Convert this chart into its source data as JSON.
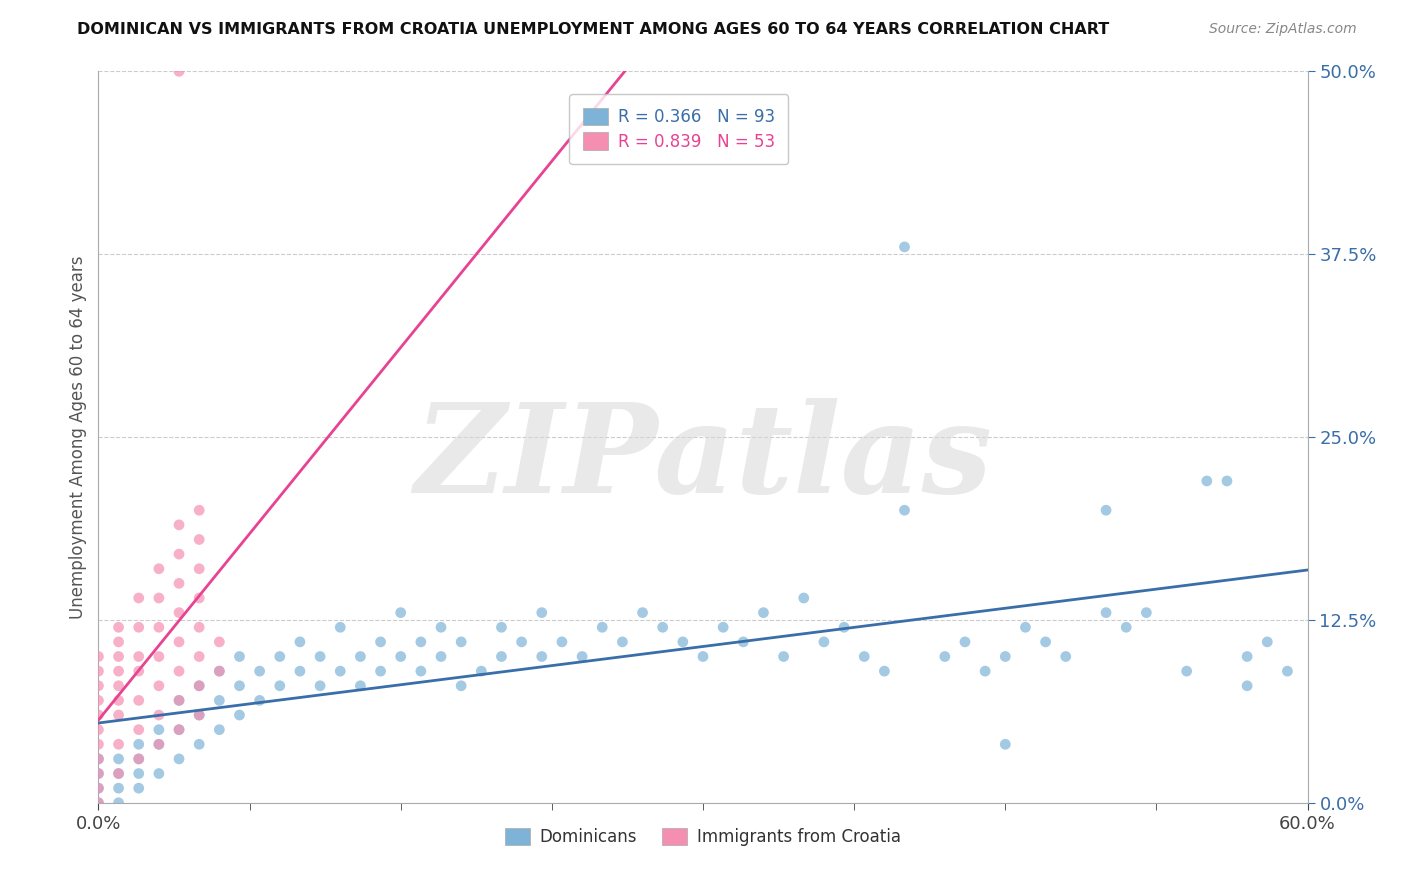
{
  "title": "DOMINICAN VS IMMIGRANTS FROM CROATIA UNEMPLOYMENT AMONG AGES 60 TO 64 YEARS CORRELATION CHART",
  "source": "Source: ZipAtlas.com",
  "watermark": "ZIPatlas",
  "legend1_label": "Dominicans",
  "legend2_label": "Immigrants from Croatia",
  "R1": 0.366,
  "N1": 93,
  "R2": 0.839,
  "N2": 53,
  "color_dominican": "#7EB3D8",
  "color_croatia": "#F48FB1",
  "color_regression_dominican": "#3A6EA8",
  "color_regression_croatia": "#E84393",
  "xlim": [
    0.0,
    0.6
  ],
  "ylim": [
    0.0,
    0.5
  ],
  "ytick_vals": [
    0.0,
    0.125,
    0.25,
    0.375,
    0.5
  ],
  "ytick_labels": [
    "0.0%",
    "12.5%",
    "25.0%",
    "37.5%",
    "50.0%"
  ],
  "xtick_vals": [
    0.0,
    0.6
  ],
  "xtick_labels": [
    "0.0%",
    "60.0%"
  ],
  "dom_x": [
    0.0,
    0.0,
    0.0,
    0.0,
    0.01,
    0.01,
    0.01,
    0.01,
    0.02,
    0.02,
    0.02,
    0.02,
    0.03,
    0.03,
    0.03,
    0.04,
    0.04,
    0.04,
    0.05,
    0.05,
    0.05,
    0.06,
    0.06,
    0.06,
    0.07,
    0.07,
    0.07,
    0.08,
    0.08,
    0.09,
    0.09,
    0.1,
    0.1,
    0.11,
    0.11,
    0.12,
    0.12,
    0.13,
    0.13,
    0.14,
    0.14,
    0.15,
    0.15,
    0.16,
    0.16,
    0.17,
    0.17,
    0.18,
    0.18,
    0.19,
    0.2,
    0.2,
    0.21,
    0.22,
    0.22,
    0.23,
    0.24,
    0.25,
    0.26,
    0.27,
    0.28,
    0.29,
    0.3,
    0.31,
    0.32,
    0.33,
    0.34,
    0.35,
    0.36,
    0.37,
    0.38,
    0.39,
    0.4,
    0.42,
    0.43,
    0.44,
    0.45,
    0.46,
    0.47,
    0.48,
    0.5,
    0.51,
    0.52,
    0.54,
    0.55,
    0.56,
    0.57,
    0.57,
    0.58,
    0.59,
    0.4,
    0.45,
    0.5
  ],
  "dom_y": [
    0.0,
    0.01,
    0.02,
    0.03,
    0.0,
    0.01,
    0.02,
    0.03,
    0.01,
    0.02,
    0.03,
    0.04,
    0.02,
    0.04,
    0.05,
    0.03,
    0.05,
    0.07,
    0.04,
    0.06,
    0.08,
    0.05,
    0.07,
    0.09,
    0.06,
    0.08,
    0.1,
    0.07,
    0.09,
    0.08,
    0.1,
    0.09,
    0.11,
    0.08,
    0.1,
    0.09,
    0.12,
    0.1,
    0.08,
    0.11,
    0.09,
    0.1,
    0.13,
    0.11,
    0.09,
    0.12,
    0.1,
    0.11,
    0.08,
    0.09,
    0.1,
    0.12,
    0.11,
    0.1,
    0.13,
    0.11,
    0.1,
    0.12,
    0.11,
    0.13,
    0.12,
    0.11,
    0.1,
    0.12,
    0.11,
    0.13,
    0.1,
    0.14,
    0.11,
    0.12,
    0.1,
    0.09,
    0.38,
    0.1,
    0.11,
    0.09,
    0.1,
    0.12,
    0.11,
    0.1,
    0.13,
    0.12,
    0.13,
    0.09,
    0.22,
    0.22,
    0.08,
    0.1,
    0.11,
    0.09,
    0.2,
    0.04,
    0.2
  ],
  "cro_x": [
    0.0,
    0.0,
    0.0,
    0.0,
    0.0,
    0.0,
    0.0,
    0.0,
    0.0,
    0.0,
    0.0,
    0.01,
    0.01,
    0.01,
    0.01,
    0.01,
    0.01,
    0.01,
    0.01,
    0.01,
    0.02,
    0.02,
    0.02,
    0.02,
    0.02,
    0.02,
    0.02,
    0.03,
    0.03,
    0.03,
    0.03,
    0.03,
    0.03,
    0.03,
    0.04,
    0.04,
    0.04,
    0.04,
    0.04,
    0.04,
    0.04,
    0.04,
    0.05,
    0.05,
    0.05,
    0.05,
    0.05,
    0.05,
    0.05,
    0.05,
    0.06,
    0.06,
    0.04
  ],
  "cro_y": [
    0.0,
    0.01,
    0.02,
    0.03,
    0.04,
    0.05,
    0.06,
    0.07,
    0.08,
    0.09,
    0.1,
    0.02,
    0.04,
    0.06,
    0.07,
    0.08,
    0.09,
    0.1,
    0.11,
    0.12,
    0.03,
    0.05,
    0.07,
    0.09,
    0.1,
    0.12,
    0.14,
    0.04,
    0.06,
    0.08,
    0.1,
    0.12,
    0.14,
    0.16,
    0.05,
    0.07,
    0.09,
    0.11,
    0.13,
    0.15,
    0.17,
    0.19,
    0.06,
    0.08,
    0.1,
    0.12,
    0.14,
    0.16,
    0.18,
    0.2,
    0.09,
    0.11,
    0.5
  ]
}
